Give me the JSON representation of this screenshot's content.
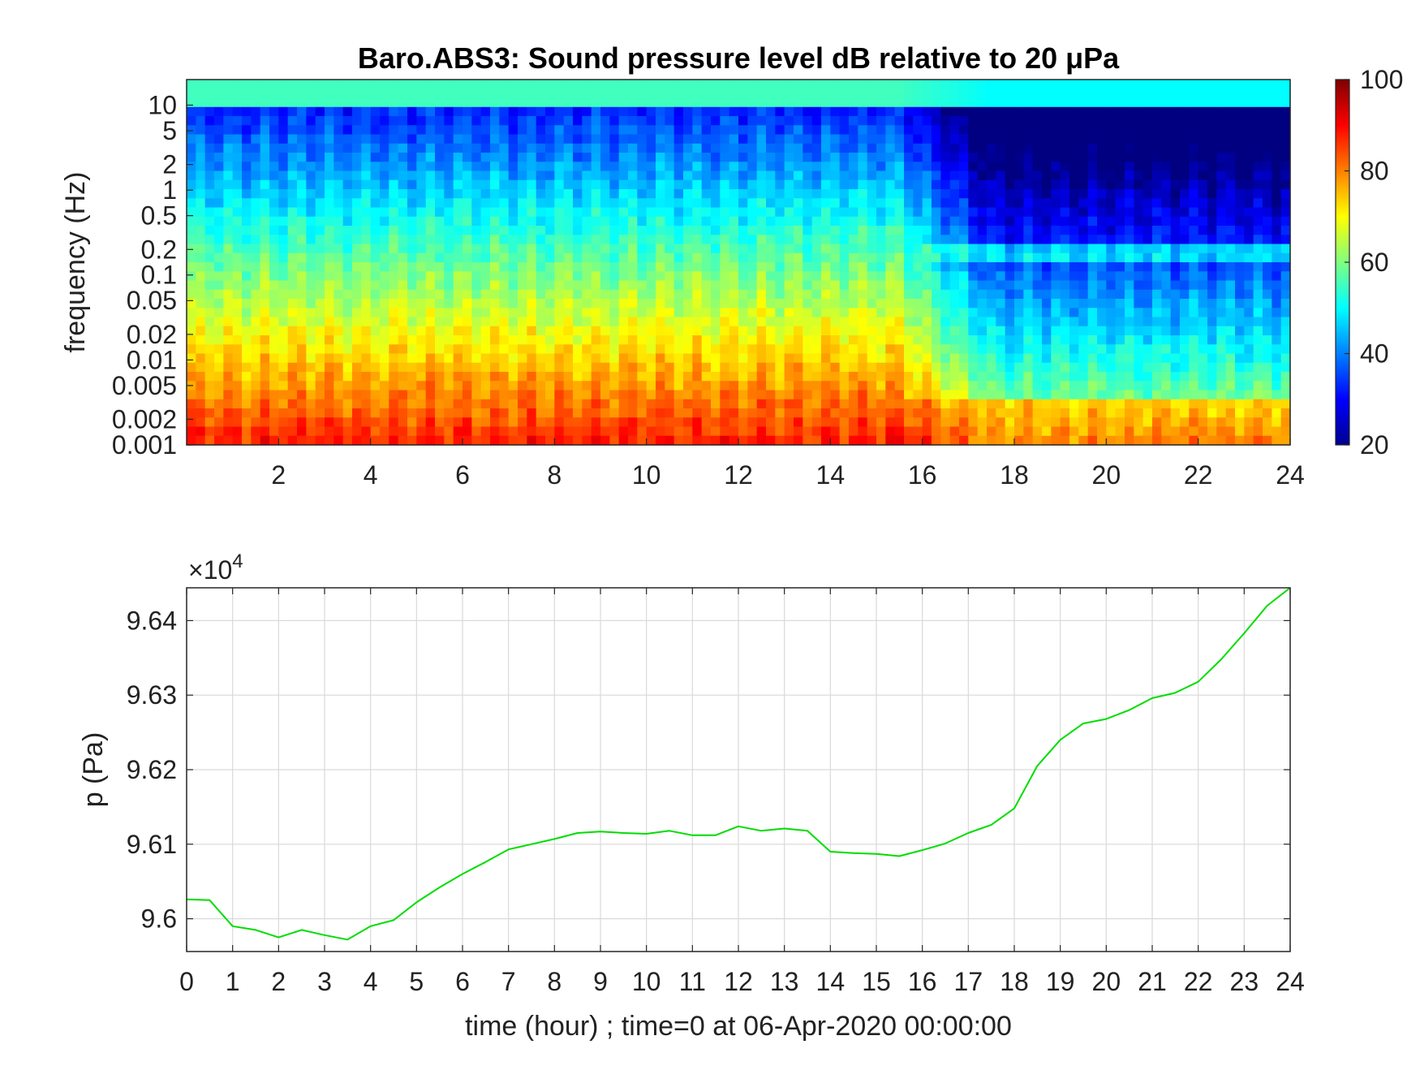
{
  "chart_data": [
    {
      "type": "heatmap",
      "title": "Baro.ABS3: Sound pressure level dB relative to 20 μPa",
      "ylabel": "frequency (Hz)",
      "xlabel": "",
      "xlim": [
        0,
        24
      ],
      "ylim": [
        0.001,
        20
      ],
      "yscale": "log",
      "x_ticks": [
        "2",
        "4",
        "6",
        "8",
        "10",
        "12",
        "14",
        "16",
        "18",
        "20",
        "22",
        "24"
      ],
      "y_ticks": [
        "0.001",
        "0.002",
        "0.005",
        "0.01",
        "0.02",
        "0.05",
        "0.1",
        "0.2",
        "0.5",
        "1",
        "2",
        "5",
        "10"
      ],
      "colormap": "jet",
      "color_range": [
        20,
        100
      ],
      "colorbar_ticks": [
        "20",
        "40",
        "60",
        "80",
        "100"
      ],
      "grid": false
    },
    {
      "type": "line",
      "title": "",
      "xlabel": "time (hour) ; time=0 at 06-Apr-2020 00:00:00",
      "ylabel": "p (Pa)",
      "exponent_label": "×10",
      "exponent_power": "4",
      "xlim": [
        0,
        24
      ],
      "ylim": [
        95956,
        96444
      ],
      "x_ticks": [
        "0",
        "1",
        "2",
        "3",
        "4",
        "5",
        "6",
        "7",
        "8",
        "9",
        "10",
        "11",
        "12",
        "13",
        "14",
        "15",
        "16",
        "17",
        "18",
        "19",
        "20",
        "21",
        "22",
        "23",
        "24"
      ],
      "y_ticks": [
        "9.6",
        "9.61",
        "9.62",
        "9.63",
        "9.64"
      ],
      "grid": true,
      "series": [
        {
          "color": "#00dd00",
          "x": [
            0,
            0.5,
            1,
            1.5,
            2,
            2.5,
            3,
            3.5,
            4,
            4.5,
            5,
            5.5,
            6,
            6.5,
            7,
            7.5,
            8,
            8.5,
            9,
            9.5,
            10,
            10.5,
            11,
            11.5,
            12,
            12.5,
            13,
            13.5,
            14,
            14.5,
            15,
            15.5,
            16,
            16.5,
            17,
            17.5,
            18,
            18.5,
            19,
            19.5,
            20,
            20.5,
            21,
            21.5,
            22,
            22.5,
            23,
            23.5,
            24
          ],
          "y": [
            96026,
            96025,
            95990,
            95985,
            95975,
            95985,
            95978,
            95972,
            95990,
            95998,
            96022,
            96042,
            96060,
            96076,
            96093,
            96100,
            96107,
            96115,
            96117,
            96115,
            96114,
            96118,
            96112,
            96112,
            96124,
            96118,
            96121,
            96118,
            96090,
            96088,
            96087,
            96084,
            96092,
            96101,
            96115,
            96126,
            96148,
            96205,
            96240,
            96262,
            96268,
            96280,
            96296,
            96303,
            96318,
            96348,
            96383,
            96420,
            96444
          ]
        }
      ]
    }
  ]
}
